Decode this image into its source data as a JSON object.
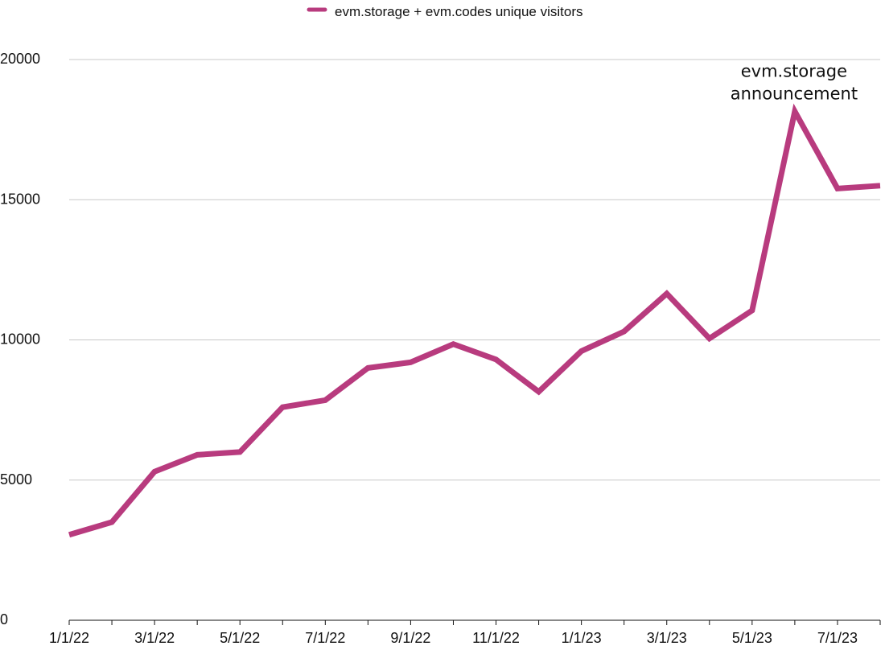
{
  "chart_data": {
    "type": "line",
    "title": "",
    "xlabel": "",
    "ylabel": "",
    "x": [
      "1/1/22",
      "2/1/22",
      "3/1/22",
      "4/1/22",
      "5/1/22",
      "6/1/22",
      "7/1/22",
      "8/1/22",
      "9/1/22",
      "10/1/22",
      "11/1/22",
      "12/1/22",
      "1/1/23",
      "2/1/23",
      "3/1/23",
      "4/1/23",
      "5/1/23",
      "6/1/23",
      "7/1/23",
      "8/1/23"
    ],
    "x_tick_labels": [
      "1/1/22",
      "3/1/22",
      "5/1/22",
      "7/1/22",
      "9/1/22",
      "11/1/22",
      "1/1/23",
      "3/1/23",
      "5/1/23",
      "7/1/23"
    ],
    "y_tick_labels": [
      "0",
      "5000",
      "10000",
      "15000",
      "20000"
    ],
    "y_ticks": [
      0,
      5000,
      10000,
      15000,
      20000
    ],
    "ylim": [
      0,
      20000
    ],
    "grid": true,
    "legend_position": "top-center",
    "series": [
      {
        "name": "evm.storage + evm.codes unique visitors",
        "color": "#b83b7e",
        "values": [
          3050,
          3500,
          5300,
          5900,
          6000,
          7600,
          7850,
          9000,
          9200,
          9850,
          9300,
          8150,
          9600,
          10300,
          11650,
          10050,
          11050,
          18150,
          15400,
          15500
        ]
      }
    ],
    "annotations": [
      {
        "lines": [
          "evm.storage",
          "announcement"
        ],
        "x": "6/1/23",
        "y": 18150
      }
    ]
  }
}
